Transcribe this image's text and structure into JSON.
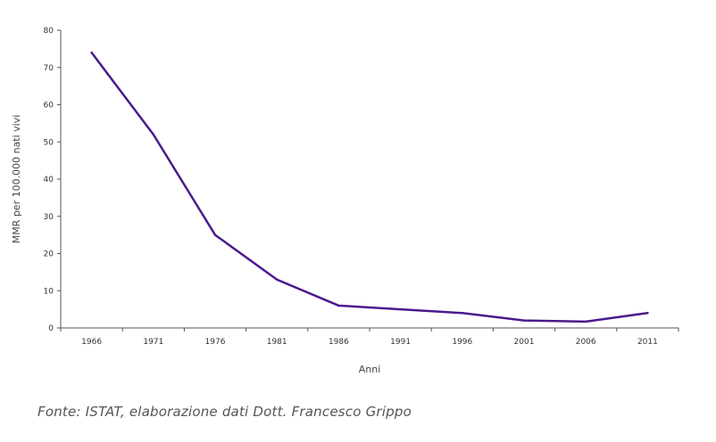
{
  "chart_data": {
    "type": "line",
    "x": [
      "1966",
      "1971",
      "1976",
      "1981",
      "1986",
      "1991",
      "1996",
      "2001",
      "2006",
      "2011"
    ],
    "series": [
      {
        "values": [
          74,
          52,
          25,
          13,
          6,
          5,
          4,
          2,
          1.7,
          4
        ]
      }
    ],
    "title": "",
    "xlabel": "Anni",
    "ylabel": "MMR per 100.000 nati vivi",
    "ylim": [
      0,
      80
    ],
    "yticks": [
      0,
      10,
      20,
      30,
      40,
      50,
      60,
      70,
      80
    ],
    "line_color": "#4b1a8c",
    "grid": false,
    "legend": "none"
  },
  "footer": {
    "source": "Fonte: ISTAT, elaborazione dati Dott. Francesco Grippo"
  }
}
